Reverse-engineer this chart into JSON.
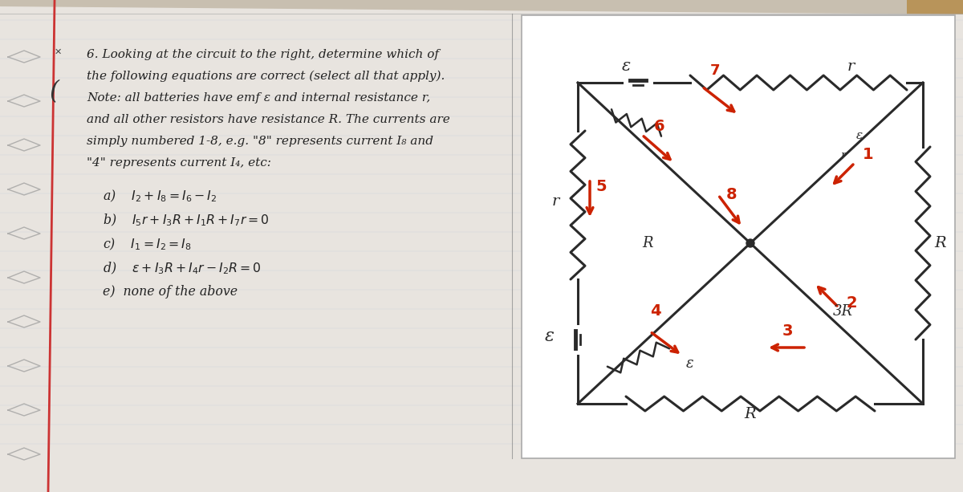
{
  "bg_color": "#c8bfb0",
  "page_color": "#e8e4df",
  "circuit_bg": "#f5f3f0",
  "margin_line_color": "#cc3333",
  "text_color": "#222222",
  "dark": "#2a2a2a",
  "red_curr": "#cc2200",
  "orange_curr": "#d06000",
  "text_fontsize": 11.0,
  "title_lines": [
    "6. Looking at the circuit to the right, determine which of",
    "the following equations are correct (select all that apply).",
    "Note: all batteries have emf ε and internal resistance r,",
    "and all other resistors have resistance R. The currents are",
    "simply numbered 1-8, e.g. \"8\" represents current I₈ and",
    "\"4\" represents current I₄, etc:"
  ],
  "options": [
    "a)    $I_2+I_8=I_6-I_2$",
    "b)    $I_5r+I_3R+I_1R+I_7r=0$",
    "c)    $I_1=I_2=I_8$",
    "d)    $\\varepsilon+I_3R+I_4r-I_2R=0$",
    "e)  none of the above"
  ]
}
